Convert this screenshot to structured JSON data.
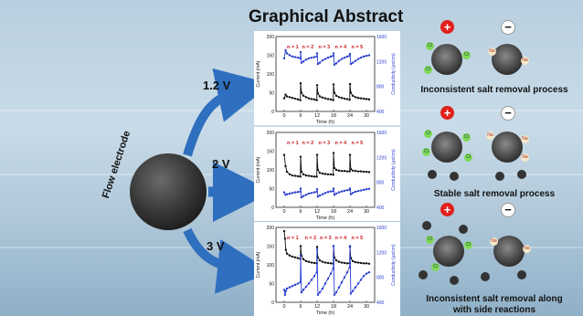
{
  "title": "Graphical Abstract",
  "electrode_label": "Flow electrode",
  "voltages": [
    "1.2 V",
    "2 V",
    "3 V"
  ],
  "captions": [
    "Inconsistent salt removal process",
    "Stable salt removal process",
    "Inconsistent salt removal  along",
    "with side reactions"
  ],
  "ion_labels": {
    "cl": "Cl",
    "na": "Na"
  },
  "signs": {
    "plus": "+",
    "minus": "−"
  },
  "colors": {
    "current": "#111111",
    "conductivity": "#2a3fd0",
    "cycle_label": "#d01515",
    "plus": "#e0201b"
  },
  "chart_data": [
    {
      "type": "line",
      "voltage": "1.2 V",
      "xlabel": "Time (h)",
      "ylabel_left": "Current (mA)",
      "ylabel_right": "Conductivity (μs/cm)",
      "xlim": [
        -3,
        33
      ],
      "xticks": [
        0,
        6,
        12,
        18,
        24,
        30
      ],
      "ylim_left": [
        0,
        200
      ],
      "yticks_left": [
        0,
        50,
        100,
        150,
        200
      ],
      "ylim_right": [
        400,
        1600
      ],
      "yticks_right": [
        400,
        800,
        1200,
        1600
      ],
      "cycle_labels": [
        "n = 1",
        "n = 2",
        "n = 3",
        "n = 4",
        "n = 5"
      ],
      "cycle_label_x": [
        1,
        6.5,
        12.5,
        18.5,
        24.5
      ],
      "series": [
        {
          "axis": "left",
          "x": [
            0,
            0.5,
            1,
            2,
            3,
            4,
            5,
            5.9,
            6,
            6.3,
            7,
            8,
            9,
            10,
            11,
            11.9,
            12,
            12.3,
            13,
            14,
            15,
            16,
            17,
            17.9,
            18,
            18.3,
            19,
            20,
            21,
            22,
            23,
            23.9,
            24,
            24.3,
            25,
            26,
            27,
            28,
            29,
            30,
            31
          ],
          "values": [
            35,
            45,
            40,
            38,
            36,
            34,
            32,
            30,
            75,
            50,
            42,
            38,
            35,
            33,
            32,
            30,
            70,
            48,
            40,
            37,
            35,
            33,
            32,
            30,
            72,
            50,
            42,
            38,
            36,
            34,
            33,
            31,
            73,
            50,
            42,
            38,
            36,
            35,
            34,
            33,
            32
          ]
        },
        {
          "axis": "right",
          "x": [
            0,
            0.5,
            1,
            2,
            3,
            4,
            5,
            5.9,
            6,
            6.3,
            7,
            8,
            9,
            10,
            11,
            11.9,
            12,
            12.3,
            13,
            14,
            15,
            16,
            17,
            17.9,
            18,
            18.3,
            19,
            20,
            21,
            22,
            23,
            23.9,
            24,
            24.3,
            25,
            26,
            27,
            28,
            29,
            30,
            31
          ],
          "values": [
            1250,
            1380,
            1330,
            1300,
            1280,
            1270,
            1260,
            1250,
            1350,
            1180,
            1200,
            1230,
            1250,
            1260,
            1270,
            1280,
            1330,
            1160,
            1180,
            1220,
            1240,
            1260,
            1280,
            1290,
            1330,
            1150,
            1170,
            1210,
            1240,
            1260,
            1280,
            1290,
            1320,
            1160,
            1180,
            1210,
            1240,
            1260,
            1280,
            1290,
            1300
          ]
        }
      ]
    },
    {
      "type": "line",
      "voltage": "2 V",
      "xlabel": "Time (h)",
      "ylabel_left": "Current (mA)",
      "ylabel_right": "Conductivity (μs/cm)",
      "xlim": [
        -3,
        33
      ],
      "xticks": [
        0,
        6,
        12,
        18,
        24,
        30
      ],
      "ylim_left": [
        0,
        200
      ],
      "yticks_left": [
        0,
        50,
        100,
        150,
        200
      ],
      "ylim_right": [
        400,
        1600
      ],
      "yticks_right": [
        400,
        800,
        1200,
        1600
      ],
      "cycle_labels": [
        "n = 1",
        "n = 2",
        "n = 3",
        "n = 4",
        "n = 5"
      ],
      "cycle_label_x": [
        1,
        6.5,
        12.5,
        18.5,
        24.5
      ],
      "series": [
        {
          "axis": "left",
          "x": [
            0,
            0.5,
            1,
            2,
            3,
            4,
            5,
            5.9,
            6,
            6.3,
            7,
            8,
            9,
            10,
            11,
            11.9,
            12,
            12.3,
            13,
            14,
            15,
            16,
            17,
            17.9,
            18,
            18.3,
            19,
            20,
            21,
            22,
            23,
            23.9,
            24,
            24.3,
            25,
            26,
            27,
            28,
            29,
            30,
            31
          ],
          "values": [
            140,
            110,
            95,
            88,
            85,
            84,
            83,
            82,
            135,
            95,
            88,
            85,
            84,
            83,
            82,
            82,
            140,
            100,
            92,
            90,
            89,
            88,
            88,
            87,
            145,
            105,
            100,
            98,
            97,
            97,
            96,
            96,
            140,
            102,
            98,
            97,
            96,
            96,
            95,
            95,
            94
          ]
        },
        {
          "axis": "right",
          "x": [
            0,
            0.5,
            1,
            2,
            3,
            4,
            5,
            5.9,
            6,
            6.3,
            7,
            8,
            9,
            10,
            11,
            11.9,
            12,
            12.3,
            13,
            14,
            15,
            16,
            17,
            17.9,
            18,
            18.3,
            19,
            20,
            21,
            22,
            23,
            23.9,
            24,
            24.3,
            25,
            26,
            27,
            28,
            29,
            30,
            31
          ],
          "values": [
            640,
            600,
            610,
            620,
            630,
            640,
            645,
            650,
            700,
            560,
            580,
            600,
            620,
            630,
            640,
            650,
            690,
            570,
            590,
            610,
            630,
            645,
            655,
            660,
            700,
            600,
            620,
            640,
            655,
            665,
            675,
            680,
            700,
            610,
            630,
            650,
            660,
            670,
            680,
            690,
            695
          ]
        }
      ]
    },
    {
      "type": "line",
      "voltage": "3 V",
      "xlabel": "Time (h)",
      "ylabel_left": "Current (mA)",
      "ylabel_right": "Conductivity (μs/cm)",
      "xlim": [
        -3,
        33
      ],
      "xticks": [
        0,
        6,
        12,
        18,
        24,
        30
      ],
      "ylim_left": [
        0,
        200
      ],
      "yticks_left": [
        0,
        50,
        100,
        150,
        200
      ],
      "ylim_right": [
        400,
        1600
      ],
      "yticks_right": [
        400,
        800,
        1200,
        1600
      ],
      "cycle_labels": [
        "n = 1",
        "n = 2",
        "n = 3",
        "n = 4",
        "n = 5"
      ],
      "cycle_label_x": [
        1,
        7.5,
        13,
        18.5,
        24.5
      ],
      "series": [
        {
          "axis": "left",
          "x": [
            0,
            0.3,
            0.6,
            1,
            2,
            3,
            4,
            5,
            5.9,
            6,
            6.3,
            7,
            8,
            9,
            10,
            11,
            11.9,
            12,
            12.3,
            13,
            14,
            15,
            16,
            17,
            17.9,
            18,
            18.3,
            19,
            20,
            21,
            22,
            23,
            23.9,
            24,
            24.3,
            25,
            26,
            27,
            28,
            29,
            30,
            31
          ],
          "values": [
            190,
            170,
            140,
            130,
            125,
            122,
            120,
            118,
            116,
            150,
            125,
            115,
            110,
            108,
            106,
            105,
            104,
            148,
            120,
            112,
            108,
            106,
            105,
            104,
            103,
            150,
            120,
            112,
            108,
            106,
            105,
            104,
            104,
            148,
            118,
            110,
            107,
            106,
            105,
            104,
            104,
            103
          ]
        },
        {
          "axis": "right",
          "x": [
            0,
            0.3,
            0.6,
            1,
            2,
            3,
            4,
            5,
            5.9,
            6,
            6.3,
            7,
            8,
            9,
            10,
            11,
            11.9,
            12,
            12.3,
            13,
            14,
            15,
            16,
            17,
            17.9,
            18,
            18.3,
            19,
            20,
            21,
            22,
            23,
            23.9,
            24,
            24.3,
            25,
            26,
            27,
            28,
            29,
            30,
            31
          ],
          "values": [
            600,
            520,
            580,
            620,
            640,
            660,
            680,
            700,
            720,
            1150,
            560,
            600,
            650,
            700,
            760,
            820,
            880,
            1250,
            520,
            560,
            620,
            700,
            780,
            860,
            940,
            1300,
            520,
            560,
            640,
            720,
            800,
            880,
            960,
            1300,
            540,
            580,
            640,
            700,
            760,
            820,
            860,
            880
          ]
        }
      ]
    }
  ]
}
